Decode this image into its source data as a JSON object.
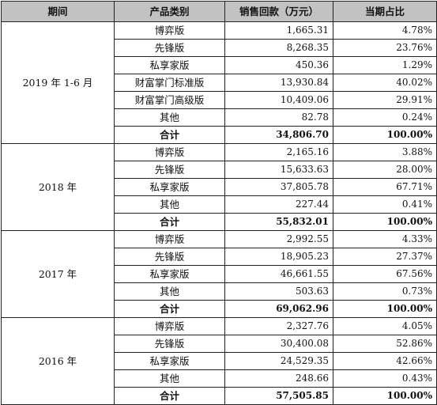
{
  "headers": [
    "期间",
    "产品类别",
    "销售回款（万元）",
    "当期占比"
  ],
  "groups": [
    {
      "period": "2019 年 1-6 月",
      "rows": [
        {
          "product": "博弈版",
          "amount": "1,665.31",
          "share": "4.78%"
        },
        {
          "product": "先锋版",
          "amount": "8,268.35",
          "share": "23.76%"
        },
        {
          "product": "私享家版",
          "amount": "450.36",
          "share": "1.29%"
        },
        {
          "product": "财富掌门标准版",
          "amount": "13,930.84",
          "share": "40.02%"
        },
        {
          "product": "财富掌门高级版",
          "amount": "10,409.06",
          "share": "29.91%"
        },
        {
          "product": "其他",
          "amount": "82.78",
          "share": "0.24%"
        }
      ],
      "total": {
        "label": "合计",
        "amount": "34,806.70",
        "share": "100.00%"
      }
    },
    {
      "period": "2018 年",
      "rows": [
        {
          "product": "博弈版",
          "amount": "2,165.16",
          "share": "3.88%"
        },
        {
          "product": "先锋版",
          "amount": "15,633.63",
          "share": "28.00%"
        },
        {
          "product": "私享家版",
          "amount": "37,805.78",
          "share": "67.71%"
        },
        {
          "product": "其他",
          "amount": "227.44",
          "share": "0.41%"
        }
      ],
      "total": {
        "label": "合计",
        "amount": "55,832.01",
        "share": "100.00%"
      }
    },
    {
      "period": "2017 年",
      "rows": [
        {
          "product": "博弈版",
          "amount": "2,992.55",
          "share": "4.33%"
        },
        {
          "product": "先锋版",
          "amount": "18,905.23",
          "share": "27.37%"
        },
        {
          "product": "私享家版",
          "amount": "46,661.55",
          "share": "67.56%"
        },
        {
          "product": "其他",
          "amount": "503.63",
          "share": "0.73%"
        }
      ],
      "total": {
        "label": "合计",
        "amount": "69,062.96",
        "share": "100.00%"
      }
    },
    {
      "period": "2016 年",
      "rows": [
        {
          "product": "博弈版",
          "amount": "2,327.76",
          "share": "4.05%"
        },
        {
          "product": "先锋版",
          "amount": "30,400.08",
          "share": "52.86%"
        },
        {
          "product": "私享家版",
          "amount": "24,529.35",
          "share": "42.66%"
        },
        {
          "product": "其他",
          "amount": "248.66",
          "share": "0.43%"
        }
      ],
      "total": {
        "label": "合计",
        "amount": "57,505.85",
        "share": "100.00%"
      }
    }
  ],
  "colors": {
    "header_background": "#c2c2c2",
    "border": "#222222",
    "text": "#111111"
  }
}
